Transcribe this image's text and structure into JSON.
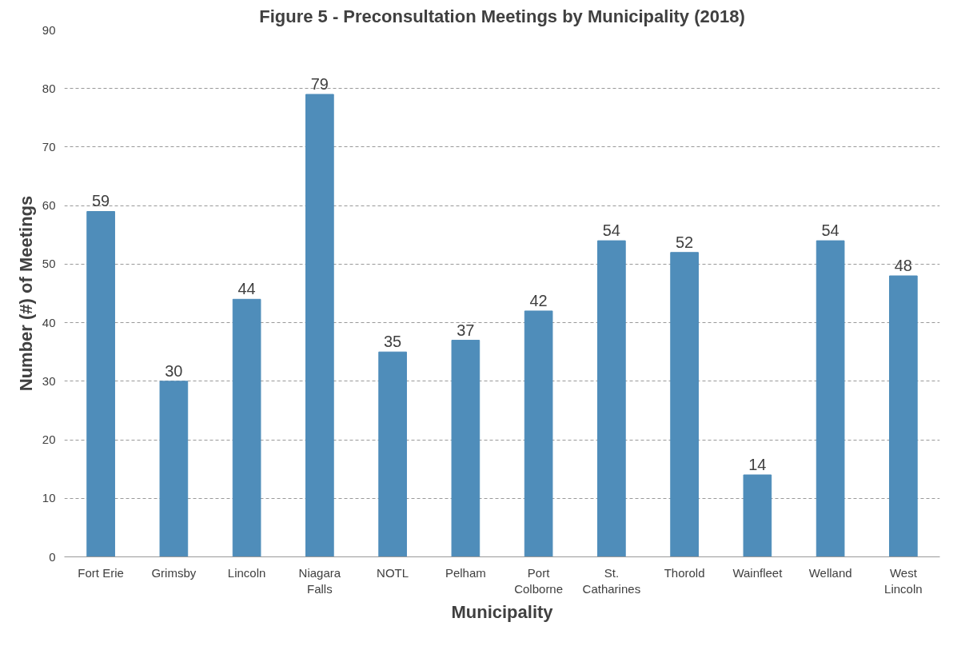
{
  "chart_data": {
    "type": "bar",
    "title": "Figure 5 - Preconsultation Meetings by Municipality (2018)",
    "xlabel": "Municipality",
    "ylabel": "Number (#) of Meetings",
    "categories": [
      "Fort Erie",
      "Grimsby",
      "Lincoln",
      "Niagara Falls",
      "NOTL",
      "Pelham",
      "Port Colborne",
      "St. Catharines",
      "Thorold",
      "Wainfleet",
      "Welland",
      "West Lincoln"
    ],
    "values": [
      59,
      30,
      44,
      79,
      35,
      37,
      42,
      54,
      52,
      14,
      54,
      48
    ],
    "color": "#4f8dba",
    "ylim": [
      0,
      90
    ],
    "yticks": [
      0,
      10,
      20,
      30,
      40,
      50,
      60,
      70,
      80,
      90
    ],
    "grid": "y",
    "data_labels": true
  }
}
